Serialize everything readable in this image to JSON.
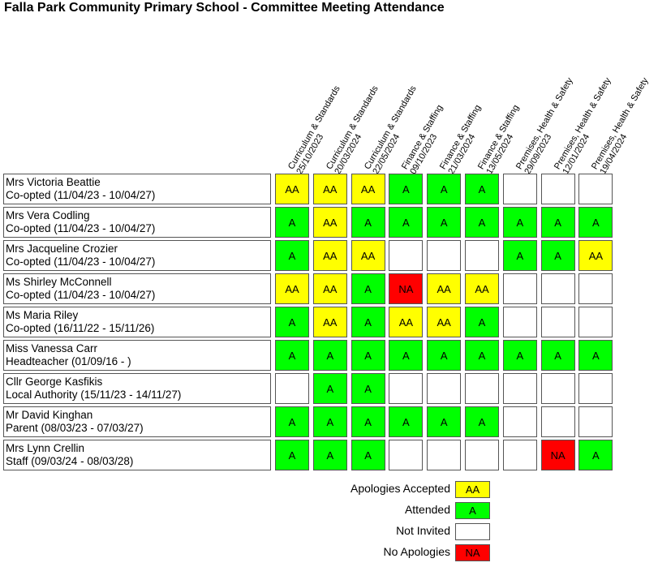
{
  "title": "Falla Park Community Primary School - Committee Meeting Attendance",
  "colors": {
    "AA": "#ffff00",
    "A": "#00ff00",
    "NA": "#ff0000",
    "": "#ffffff"
  },
  "columns": [
    {
      "name": "Curriculum & Standards",
      "date": "25/10/2023"
    },
    {
      "name": "Curriculum & Standards",
      "date": "20/03/2024"
    },
    {
      "name": "Curriculum & Standards",
      "date": "22/05/2024"
    },
    {
      "name": "Finance & Staffing",
      "date": "09/10/2023"
    },
    {
      "name": "Finance & Staffing",
      "date": "21/03/2024"
    },
    {
      "name": "Finance & Staffing",
      "date": "13/05/2024"
    },
    {
      "name": "Premises, Health & Safety",
      "date": "29/09/2023"
    },
    {
      "name": "Premises, Health & Safety",
      "date": "12/01/2024"
    },
    {
      "name": "Premises, Health & Safety",
      "date": "19/04/2024"
    }
  ],
  "members": [
    {
      "name": "Mrs Victoria Beattie",
      "role": "Co-opted (11/04/23 - 10/04/27)",
      "attendance": [
        "AA",
        "AA",
        "AA",
        "A",
        "A",
        "A",
        "",
        "",
        ""
      ]
    },
    {
      "name": "Mrs Vera Codling",
      "role": "Co-opted (11/04/23 - 10/04/27)",
      "attendance": [
        "A",
        "AA",
        "A",
        "A",
        "A",
        "A",
        "A",
        "A",
        "A"
      ]
    },
    {
      "name": "Mrs Jacqueline Crozier",
      "role": "Co-opted (11/04/23 - 10/04/27)",
      "attendance": [
        "A",
        "AA",
        "AA",
        "",
        "",
        "",
        "A",
        "A",
        "AA"
      ]
    },
    {
      "name": "Ms Shirley McConnell",
      "role": "Co-opted (11/04/23 - 10/04/27)",
      "attendance": [
        "AA",
        "AA",
        "A",
        "NA",
        "AA",
        "AA",
        "",
        "",
        ""
      ]
    },
    {
      "name": "Ms Maria Riley",
      "role": "Co-opted (16/11/22 - 15/11/26)",
      "attendance": [
        "A",
        "AA",
        "A",
        "AA",
        "AA",
        "A",
        "",
        "",
        ""
      ]
    },
    {
      "name": "Miss Vanessa Carr",
      "role": "Headteacher (01/09/16 - )",
      "attendance": [
        "A",
        "A",
        "A",
        "A",
        "A",
        "A",
        "A",
        "A",
        "A"
      ]
    },
    {
      "name": "Cllr George Kasfikis",
      "role": "Local Authority (15/11/23 - 14/11/27)",
      "attendance": [
        "",
        "A",
        "A",
        "",
        "",
        "",
        "",
        "",
        ""
      ]
    },
    {
      "name": "Mr David Kinghan",
      "role": "Parent (08/03/23 - 07/03/27)",
      "attendance": [
        "A",
        "A",
        "A",
        "A",
        "A",
        "A",
        "",
        "",
        ""
      ]
    },
    {
      "name": "Mrs Lynn Crellin",
      "role": "Staff (09/03/24 - 08/03/28)",
      "attendance": [
        "A",
        "A",
        "A",
        "",
        "",
        "",
        "",
        "NA",
        "A"
      ]
    }
  ],
  "legend": [
    {
      "label": "Apologies Accepted",
      "code": "AA"
    },
    {
      "label": "Attended",
      "code": "A"
    },
    {
      "label": "Not Invited",
      "code": ""
    },
    {
      "label": "No Apologies",
      "code": "NA"
    }
  ]
}
